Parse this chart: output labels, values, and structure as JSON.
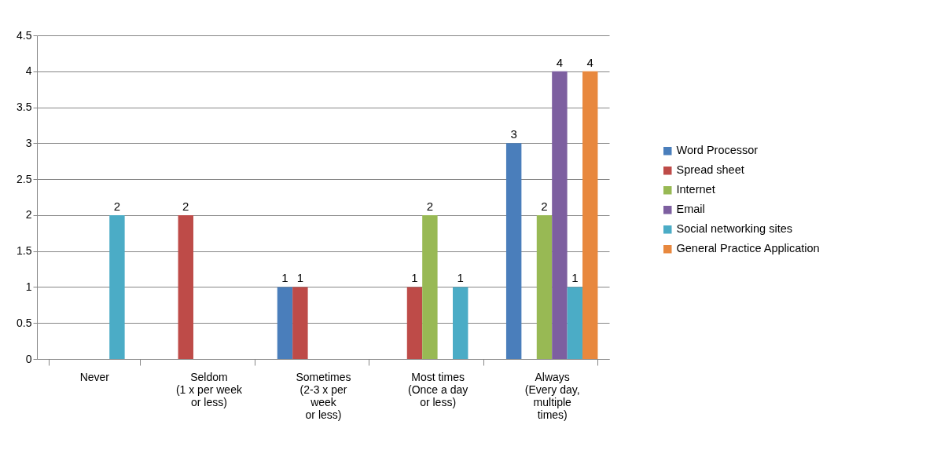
{
  "chart_data": {
    "type": "bar",
    "categories": [
      "Never",
      "Seldom\n(1 x per week\nor less)",
      "Sometimes\n(2-3 x per\nweek\nor less)",
      "Most times\n(Once a day\nor less)",
      "Always\n(Every day,\nmultiple\ntimes)"
    ],
    "series": [
      {
        "name": "Word Processor",
        "color": "#4a7ebb",
        "values": [
          null,
          null,
          1,
          null,
          3
        ]
      },
      {
        "name": "Spread sheet",
        "color": "#be4b48",
        "values": [
          null,
          2,
          1,
          1,
          null
        ]
      },
      {
        "name": "Internet",
        "color": "#98b954",
        "values": [
          null,
          null,
          null,
          2,
          2
        ]
      },
      {
        "name": "Email",
        "color": "#7d5fa0",
        "values": [
          null,
          null,
          null,
          null,
          4
        ]
      },
      {
        "name": "Social networking sites",
        "color": "#4bacc6",
        "values": [
          2,
          null,
          null,
          1,
          1
        ]
      },
      {
        "name": "General Practice Application",
        "color": "#e8883e",
        "values": [
          null,
          null,
          null,
          null,
          4
        ]
      }
    ],
    "ylim": [
      0,
      4.5
    ],
    "yticks": [
      0,
      0.5,
      1,
      1.5,
      2,
      2.5,
      3,
      3.5,
      4,
      4.5
    ],
    "grid": "y",
    "legend": "right",
    "data_labels": true
  }
}
